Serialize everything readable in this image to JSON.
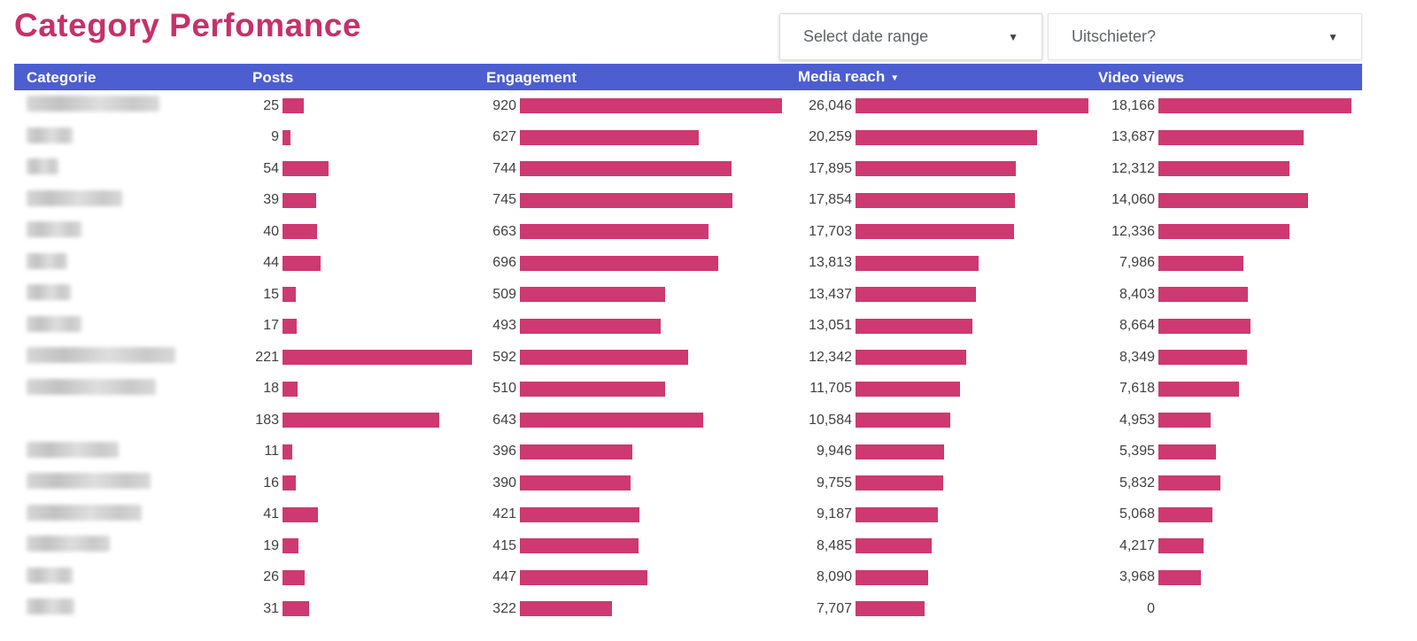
{
  "page": {
    "title": "Category Perfomance"
  },
  "controls": {
    "date_range_label": "Select date range",
    "outlier_label": "Uitschieter?",
    "dropdown_caret": "▼"
  },
  "colors": {
    "accent_pink": "#c5316b",
    "bar_pink": "#cd3970",
    "header_blue": "#4c5ed0"
  },
  "table": {
    "headers": {
      "category": "Categorie",
      "posts": "Posts",
      "engagement": "Engagement",
      "media_reach": "Media reach",
      "video_views": "Video views"
    },
    "sort": {
      "column": "media_reach",
      "direction": "desc",
      "indicator": "▼"
    },
    "category_note": "category labels are blurred/redacted in the source screenshot"
  },
  "chart_data": {
    "type": "table",
    "title": "Category Perfomance",
    "columns": [
      "Categorie",
      "Posts",
      "Engagement",
      "Media reach",
      "Video views"
    ],
    "legend_position": "none",
    "bar_style": "inline horizontal bars scaled to column maximum",
    "column_max": {
      "posts": 221,
      "engagement": 920,
      "media_reach": 26046,
      "video_views": 18166
    },
    "rows": [
      {
        "category": "[redacted]",
        "posts": 25,
        "engagement": 920,
        "media_reach": 26046,
        "video_views": 18166,
        "redacted_width": 150
      },
      {
        "category": "[redacted]",
        "posts": 9,
        "engagement": 627,
        "media_reach": 20259,
        "video_views": 13687,
        "redacted_width": 52
      },
      {
        "category": "[redacted]",
        "posts": 54,
        "engagement": 744,
        "media_reach": 17895,
        "video_views": 12312,
        "redacted_width": 36
      },
      {
        "category": "[redacted]",
        "posts": 39,
        "engagement": 745,
        "media_reach": 17854,
        "video_views": 14060,
        "redacted_width": 108
      },
      {
        "category": "[redacted]",
        "posts": 40,
        "engagement": 663,
        "media_reach": 17703,
        "video_views": 12336,
        "redacted_width": 62
      },
      {
        "category": "[redacted]",
        "posts": 44,
        "engagement": 696,
        "media_reach": 13813,
        "video_views": 7986,
        "redacted_width": 46
      },
      {
        "category": "[redacted]",
        "posts": 15,
        "engagement": 509,
        "media_reach": 13437,
        "video_views": 8403,
        "redacted_width": 50
      },
      {
        "category": "[redacted]",
        "posts": 17,
        "engagement": 493,
        "media_reach": 13051,
        "video_views": 8664,
        "redacted_width": 62
      },
      {
        "category": "[redacted]",
        "posts": 221,
        "engagement": 592,
        "media_reach": 12342,
        "video_views": 8349,
        "redacted_width": 168
      },
      {
        "category": "[redacted]",
        "posts": 18,
        "engagement": 510,
        "media_reach": 11705,
        "video_views": 7618,
        "redacted_width": 146
      },
      {
        "category": "[redacted]",
        "posts": 183,
        "engagement": 643,
        "media_reach": 10584,
        "video_views": 4953,
        "redacted_width": 0
      },
      {
        "category": "[redacted]",
        "posts": 11,
        "engagement": 396,
        "media_reach": 9946,
        "video_views": 5395,
        "redacted_width": 104
      },
      {
        "category": "[redacted]",
        "posts": 16,
        "engagement": 390,
        "media_reach": 9755,
        "video_views": 5832,
        "redacted_width": 140
      },
      {
        "category": "[redacted]",
        "posts": 41,
        "engagement": 421,
        "media_reach": 9187,
        "video_views": 5068,
        "redacted_width": 130
      },
      {
        "category": "[redacted]",
        "posts": 19,
        "engagement": 415,
        "media_reach": 8485,
        "video_views": 4217,
        "redacted_width": 94
      },
      {
        "category": "[redacted]",
        "posts": 26,
        "engagement": 447,
        "media_reach": 8090,
        "video_views": 3968,
        "redacted_width": 52
      },
      {
        "category": "[redacted]",
        "posts": 31,
        "engagement": 322,
        "media_reach": 7707,
        "video_views": 0,
        "redacted_width": 54
      }
    ]
  }
}
